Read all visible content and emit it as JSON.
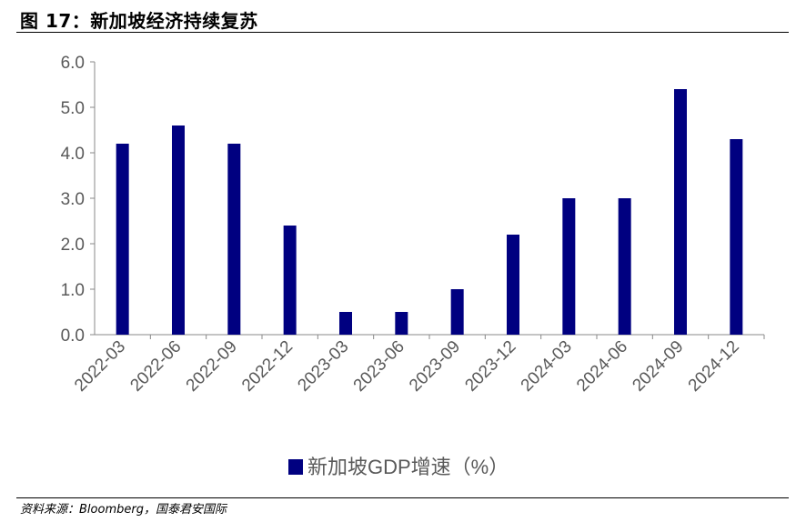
{
  "header": {
    "title": "图 17：新加坡经济持续复苏"
  },
  "footer": {
    "source": "资料来源：Bloomberg，国泰君安国际"
  },
  "colors": {
    "bar": "#000080",
    "axis": "#888888",
    "tick_text": "#595959"
  },
  "chart_data": {
    "type": "bar",
    "title": "",
    "xlabel": "",
    "ylabel": "",
    "categories": [
      "2022-03",
      "2022-06",
      "2022-09",
      "2022-12",
      "2023-03",
      "2023-06",
      "2023-09",
      "2023-12",
      "2024-03",
      "2024-06",
      "2024-09",
      "2024-12"
    ],
    "series": [
      {
        "name": "新加坡GDP增速（%）",
        "values": [
          4.2,
          4.6,
          4.2,
          2.4,
          0.5,
          0.5,
          1.0,
          2.2,
          3.0,
          3.0,
          5.4,
          4.3
        ]
      }
    ],
    "ylim": [
      0,
      6
    ],
    "yticks": [
      "0.0",
      "1.0",
      "2.0",
      "3.0",
      "4.0",
      "5.0",
      "6.0"
    ],
    "grid": false,
    "legend_position": "bottom-center"
  }
}
